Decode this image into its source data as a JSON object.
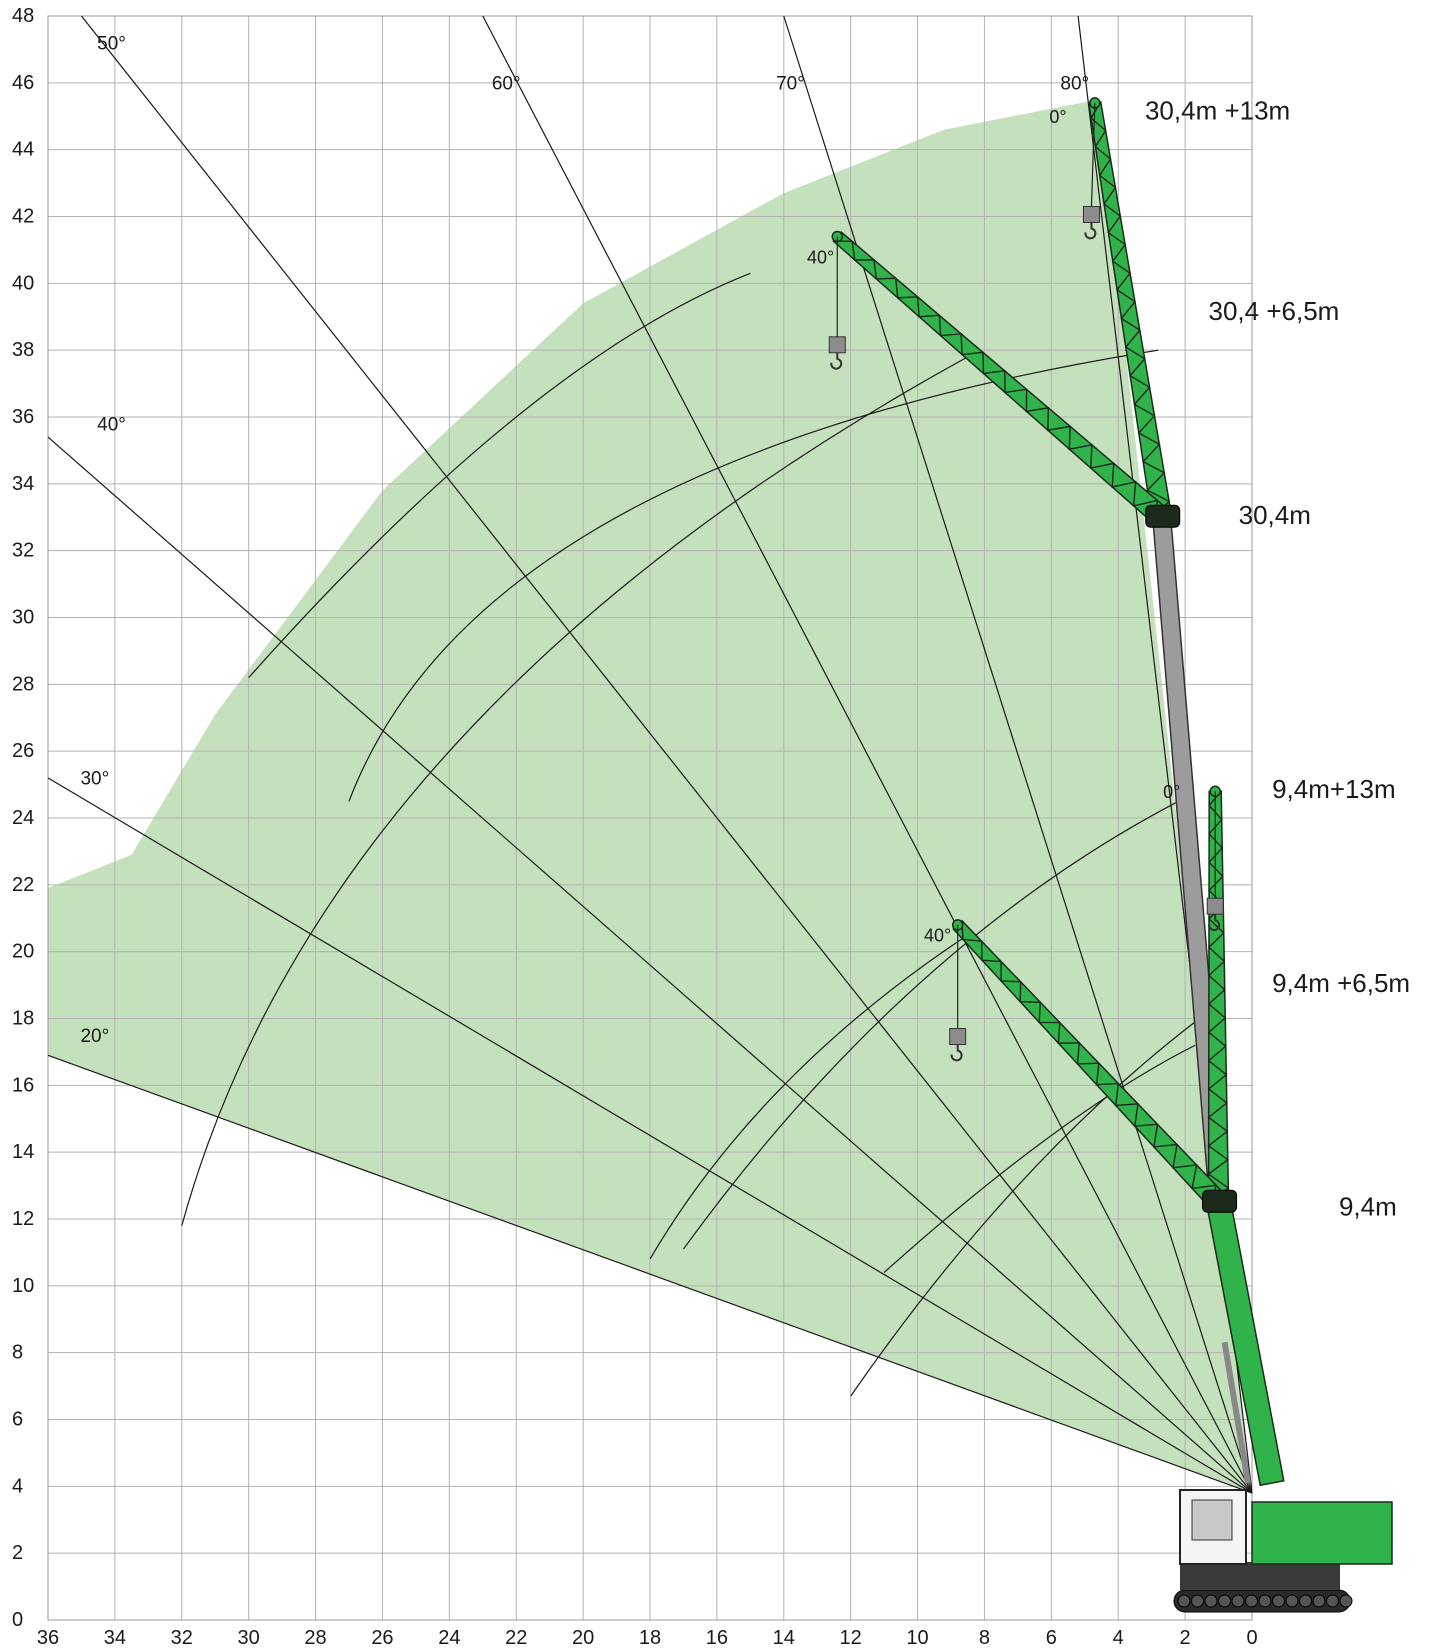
{
  "chart_data": {
    "type": "line",
    "title": "",
    "xlabel": "",
    "ylabel": "",
    "xlim": [
      36,
      0
    ],
    "ylim": [
      0,
      48
    ],
    "x_ticks": [
      36,
      34,
      32,
      30,
      28,
      26,
      24,
      22,
      20,
      18,
      16,
      14,
      12,
      10,
      8,
      6,
      4,
      2,
      0
    ],
    "y_ticks": [
      0,
      2,
      4,
      6,
      8,
      10,
      12,
      14,
      16,
      18,
      20,
      22,
      24,
      26,
      28,
      30,
      32,
      34,
      36,
      38,
      40,
      42,
      44,
      46,
      48
    ],
    "grid": true,
    "legend": "none",
    "colors": {
      "envelope": "#c5e0bc",
      "crane_green": "#2fb34a",
      "crane_dark": "#1b2a1b",
      "line": "#1a1a1a"
    },
    "working_envelope": [
      [
        36,
        16.9
      ],
      [
        0,
        3.8
      ],
      [
        1,
        12.5
      ],
      [
        4.6,
        45.5
      ],
      [
        9.2,
        44.6
      ],
      [
        14,
        42.7
      ],
      [
        20,
        39.4
      ],
      [
        26,
        33.8
      ],
      [
        31,
        27.1
      ],
      [
        33.5,
        22.9
      ],
      [
        36,
        21.9
      ]
    ],
    "boom_angle_lines": [
      {
        "label": "20°",
        "x": [
          36,
          0
        ],
        "y": [
          16.9,
          3.8
        ]
      },
      {
        "label": "30°",
        "x": [
          36,
          0
        ],
        "y": [
          25.2,
          3.8
        ]
      },
      {
        "label": "40°",
        "x": [
          36,
          0
        ],
        "y": [
          35.4,
          3.8
        ]
      },
      {
        "label": "50°",
        "x": [
          35,
          0
        ],
        "y": [
          48,
          3.8
        ]
      },
      {
        "label": "60°",
        "x": [
          23,
          0
        ],
        "y": [
          48,
          3.8
        ]
      },
      {
        "label": "70°",
        "x": [
          14,
          0
        ],
        "y": [
          48,
          3.8
        ]
      },
      {
        "label": "80°",
        "x": [
          5.2,
          0
        ],
        "y": [
          48,
          3.8
        ]
      }
    ],
    "fly_jib_arcs": [
      {
        "from": [
          32,
          11.8
        ],
        "to": [
          8.5,
          37.8
        ],
        "through": [
          24,
          26
        ]
      },
      {
        "from": [
          30,
          28.2
        ],
        "to": [
          15,
          40.3
        ],
        "through": [
          22,
          36
        ]
      },
      {
        "from": [
          27,
          24.5
        ],
        "to": [
          2.8,
          38
        ],
        "through": [
          19,
          33
        ]
      },
      {
        "from": [
          18,
          10.8
        ],
        "to": [
          8.5,
          20.5
        ],
        "through": [
          14,
          16
        ]
      },
      {
        "from": [
          17,
          11.1
        ],
        "to": [
          2.2,
          24.5
        ],
        "through": [
          10,
          19
        ]
      },
      {
        "from": [
          12,
          6.7
        ],
        "to": [
          1.7,
          17.9
        ],
        "through": [
          7,
          13
        ]
      },
      {
        "from": [
          11,
          10.4
        ],
        "to": [
          1.7,
          17.2
        ],
        "through": [
          6,
          14.5
        ]
      }
    ],
    "boom_angle_labels": [
      {
        "text": "50°",
        "x": 34.1,
        "y": 47
      },
      {
        "text": "60°",
        "x": 22.3,
        "y": 45.8
      },
      {
        "text": "70°",
        "x": 13.8,
        "y": 45.8
      },
      {
        "text": "80°",
        "x": 5.3,
        "y": 45.8
      },
      {
        "text": "40°",
        "x": 34.1,
        "y": 35.6
      },
      {
        "text": "30°",
        "x": 34.6,
        "y": 25
      },
      {
        "text": "20°",
        "x": 34.6,
        "y": 17.3
      }
    ],
    "jib_angle_labels": [
      {
        "text": "0°",
        "x": 5.8,
        "y": 44.8
      },
      {
        "text": "40°",
        "x": 12.9,
        "y": 40.6
      },
      {
        "text": "0°",
        "x": 2.4,
        "y": 24.6
      },
      {
        "text": "40°",
        "x": 9.4,
        "y": 20.3
      }
    ],
    "configurations": [
      {
        "label": "30,4m +13m",
        "x": 3.2,
        "y": 44.9
      },
      {
        "label": "30,4 +6,5m",
        "x": 1.3,
        "y": 38.9
      },
      {
        "label": "30,4m",
        "x": 0.4,
        "y": 32.8
      },
      {
        "label": "9,4m+13m",
        "x": -0.6,
        "y": 24.6
      },
      {
        "label": "9,4m +6,5m",
        "x": -0.6,
        "y": 18.8
      },
      {
        "label": "9,4m",
        "x": -2.6,
        "y": 12.1
      }
    ],
    "main_boom": {
      "pivot": [
        0,
        3.8
      ],
      "tip_9_4m": [
        1,
        12.5
      ],
      "tip_30_4m": [
        2.7,
        33
      ]
    },
    "jibs": [
      {
        "name": "30,4m +13m 0°",
        "from": [
          2.7,
          33
        ],
        "to": [
          4.7,
          45.4
        ],
        "hook": [
          4.8,
          42.3
        ]
      },
      {
        "name": "30,4m +13m 40°",
        "from": [
          2.7,
          33
        ],
        "to": [
          12.4,
          41.4
        ],
        "hook": [
          12.4,
          38.4
        ]
      },
      {
        "name": "9,4m +13m 0°",
        "from": [
          1,
          12.5
        ],
        "to": [
          1.1,
          24.8
        ],
        "hook": [
          1.1,
          21.6
        ]
      },
      {
        "name": "9,4m +13m 40°",
        "from": [
          1,
          12.5
        ],
        "to": [
          8.8,
          20.8
        ],
        "hook": [
          8.8,
          17.7
        ]
      }
    ]
  }
}
